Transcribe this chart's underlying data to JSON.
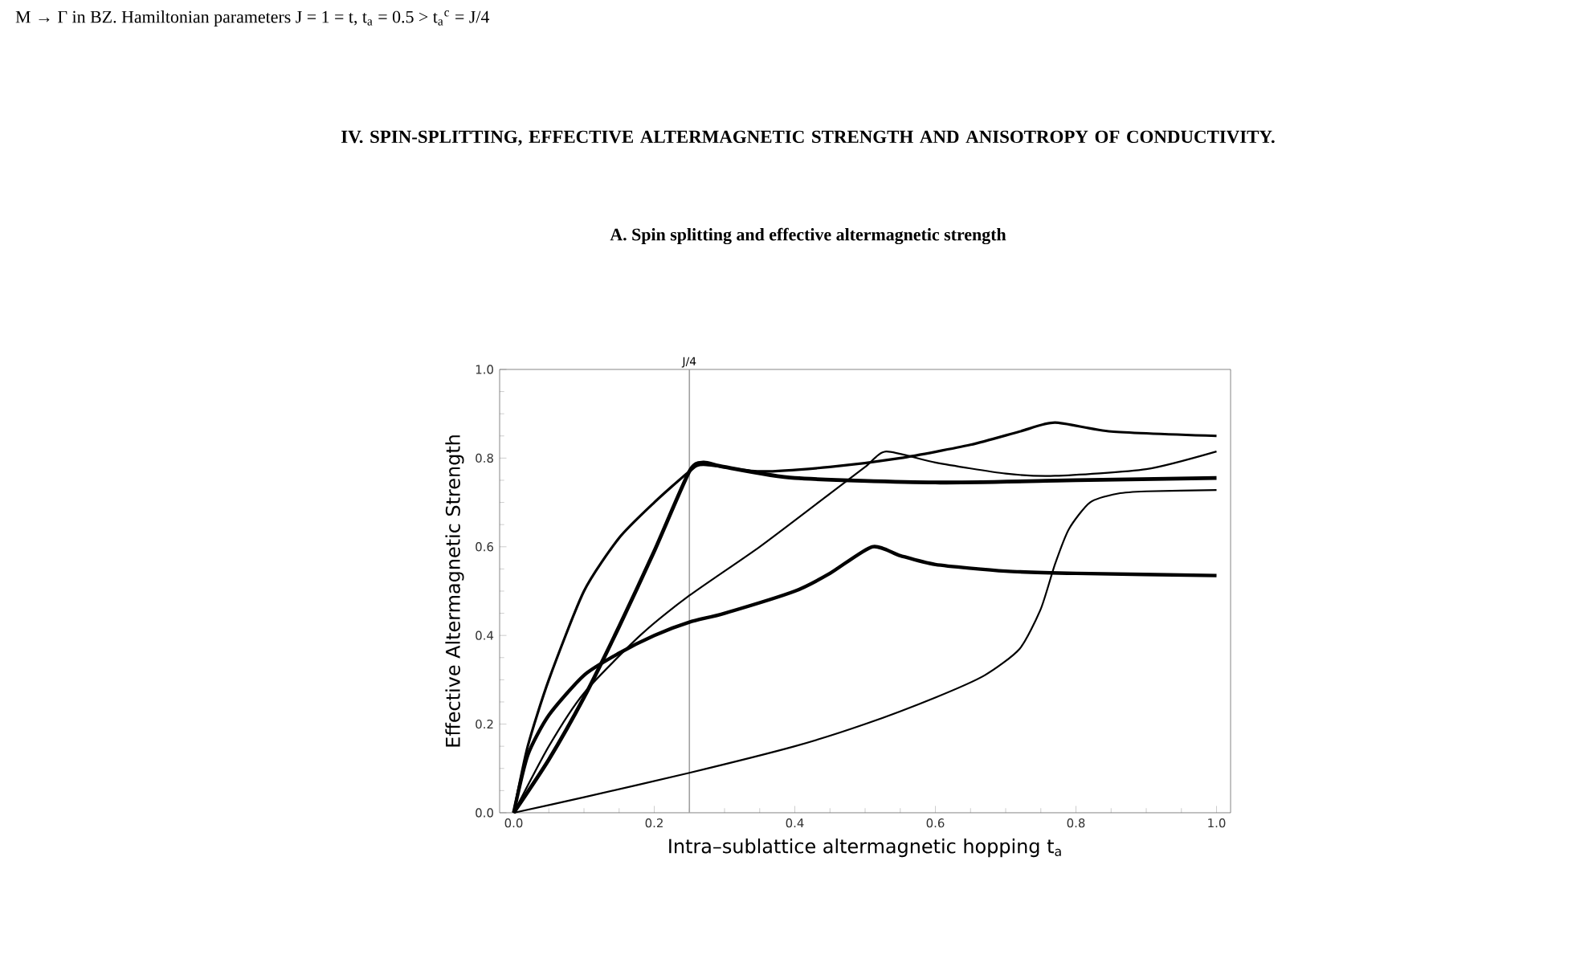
{
  "chart_data": {
    "type": "line",
    "title": "IV.   SPIN-SPLITTING, EFFECTIVE ALTERMAGNETIC STRENGTH AND ANISOTROPY OF CONDUCTIVITY.",
    "subtitle": "A.   Spin splitting and effective altermagnetic strength",
    "annotations": [
      "M → Γ in BZ. Hamiltonian parameters J = 1 = t, t$_{a}$ = 0.5 > t$_{a}$$^{c}$ = J/4"
    ],
    "xlabel": "Intra–sublattice altermagnetic hopping t$_{a}$",
    "ylabel": "Effective Altermagnetic Strength",
    "xlim": [
      -0.02,
      1.02
    ],
    "ylim": [
      0,
      1.0
    ],
    "xticks": [
      {
        "value": 0,
        "label": "0.0"
      },
      0.2,
      0.4,
      0.6,
      0.8,
      {
        "value": 1,
        "label": "1.0"
      }
    ],
    "yticks": [
      {
        "value": 0,
        "label": "0.0"
      },
      0.2,
      0.4,
      0.6,
      0.8,
      {
        "value": 1,
        "label": "1.0"
      }
    ],
    "grid": false,
    "legend": false,
    "marker": "none",
    "line_style": "solid",
    "ref_lines": [
      {
        "axis": "x",
        "value": 0.25,
        "label": "J/4",
        "color": "#a0a0a0"
      }
    ],
    "series": [
      {
        "color": "#000000",
        "x": [
          0,
          0.05,
          0.1,
          0.15,
          0.2,
          0.25,
          0.27,
          0.3,
          0.4,
          0.6,
          0.8,
          1.0
        ],
        "values": [
          0,
          0.12,
          0.26,
          0.42,
          0.59,
          0.77,
          0.79,
          0.78,
          0.755,
          0.745,
          0.75,
          0.755
        ]
      },
      {
        "color": "#000000",
        "x": [
          0,
          0.02,
          0.05,
          0.1,
          0.15,
          0.2,
          0.25,
          0.27,
          0.35,
          0.45,
          0.55,
          0.65,
          0.72,
          0.77,
          0.85,
          1.0
        ],
        "values": [
          0,
          0.15,
          0.3,
          0.5,
          0.62,
          0.7,
          0.77,
          0.785,
          0.77,
          0.78,
          0.8,
          0.83,
          0.86,
          0.88,
          0.86,
          0.85
        ]
      },
      {
        "color": "#000000",
        "x": [
          0,
          0.05,
          0.1,
          0.18,
          0.25,
          0.35,
          0.45,
          0.5,
          0.53,
          0.6,
          0.7,
          0.77,
          0.9,
          1.0
        ],
        "values": [
          0,
          0.15,
          0.27,
          0.4,
          0.49,
          0.6,
          0.72,
          0.78,
          0.815,
          0.79,
          0.765,
          0.76,
          0.775,
          0.815
        ]
      },
      {
        "color": "#000000",
        "x": [
          0,
          0.02,
          0.05,
          0.1,
          0.15,
          0.2,
          0.25,
          0.3,
          0.4,
          0.45,
          0.51,
          0.55,
          0.6,
          0.7,
          0.8,
          1.0
        ],
        "values": [
          0,
          0.13,
          0.22,
          0.31,
          0.36,
          0.4,
          0.43,
          0.45,
          0.5,
          0.54,
          0.6,
          0.58,
          0.56,
          0.545,
          0.54,
          0.535
        ]
      },
      {
        "color": "#000000",
        "x": [
          0,
          0.1,
          0.25,
          0.4,
          0.5,
          0.6,
          0.67,
          0.72,
          0.75,
          0.77,
          0.79,
          0.82,
          0.86,
          0.9,
          1.0
        ],
        "values": [
          0,
          0.035,
          0.09,
          0.15,
          0.2,
          0.26,
          0.31,
          0.37,
          0.46,
          0.56,
          0.64,
          0.7,
          0.72,
          0.725,
          0.728
        ]
      }
    ]
  }
}
